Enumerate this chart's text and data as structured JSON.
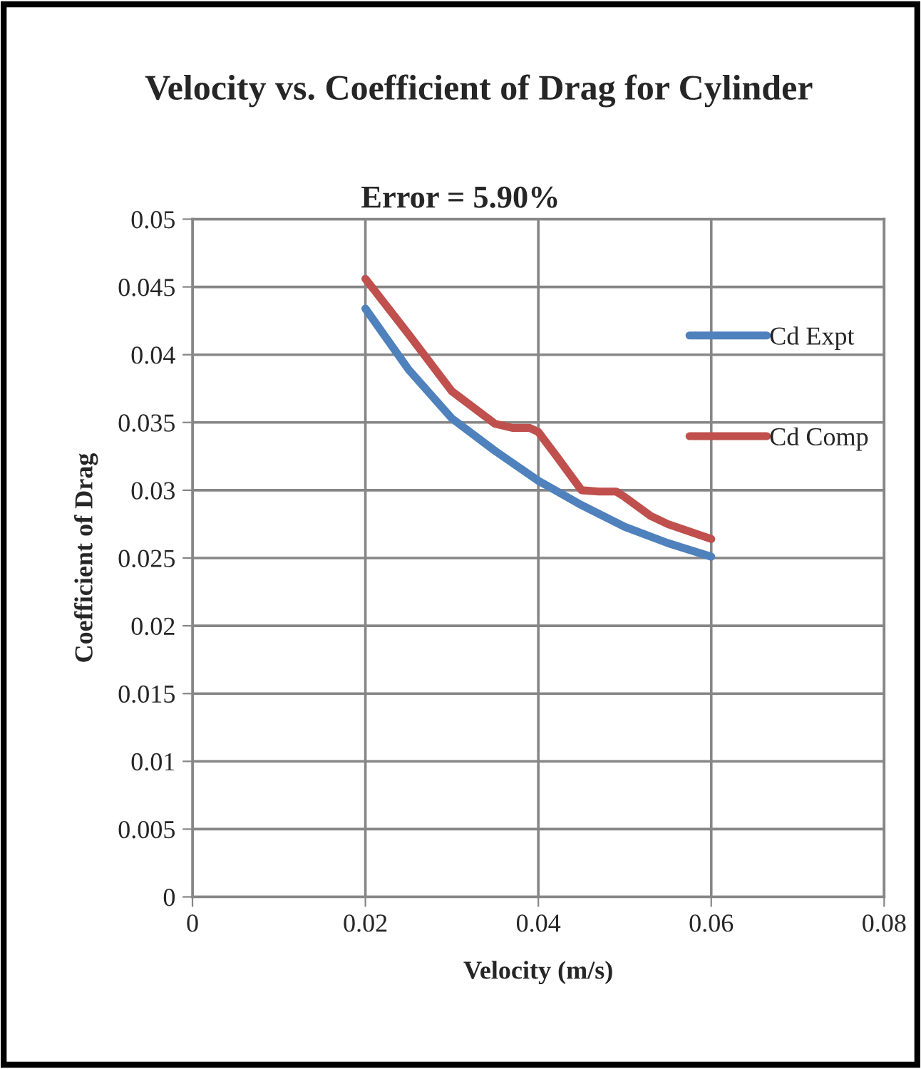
{
  "chart_data": {
    "type": "line",
    "title": "Velocity vs. Coefficient of Drag for Cylinder",
    "subtitle": "Error = 5.90%",
    "xlabel": "Velocity (m/s)",
    "ylabel": "Coefficient of Drag",
    "series": [
      {
        "name": "Cd Expt",
        "color": "#4f81bd",
        "x": [
          0.02,
          0.025,
          0.03,
          0.035,
          0.04,
          0.045,
          0.05,
          0.055,
          0.06
        ],
        "values": [
          0.0434,
          0.0389,
          0.0353,
          0.0329,
          0.0307,
          0.0289,
          0.0273,
          0.0261,
          0.0251
        ]
      },
      {
        "name": "Cd Comp",
        "color": "#c0504d",
        "x": [
          0.02,
          0.025,
          0.03,
          0.035,
          0.037,
          0.039,
          0.04,
          0.042,
          0.045,
          0.047,
          0.049,
          0.05,
          0.053,
          0.055,
          0.06
        ],
        "values": [
          0.0456,
          0.0415,
          0.0373,
          0.0349,
          0.0346,
          0.0346,
          0.0343,
          0.0326,
          0.03,
          0.0299,
          0.0299,
          0.0295,
          0.0281,
          0.0275,
          0.0264
        ]
      }
    ],
    "xlim": [
      0,
      0.08
    ],
    "xticks": [
      0,
      0.02,
      0.04,
      0.06,
      0.08
    ],
    "ylim": [
      0,
      0.05
    ],
    "yticks": [
      0,
      0.005,
      0.01,
      0.015,
      0.02,
      0.025,
      0.03,
      0.035,
      0.04,
      0.045,
      0.05
    ],
    "grid": true,
    "legend": "right",
    "marker": "none",
    "line_style": "solid"
  }
}
